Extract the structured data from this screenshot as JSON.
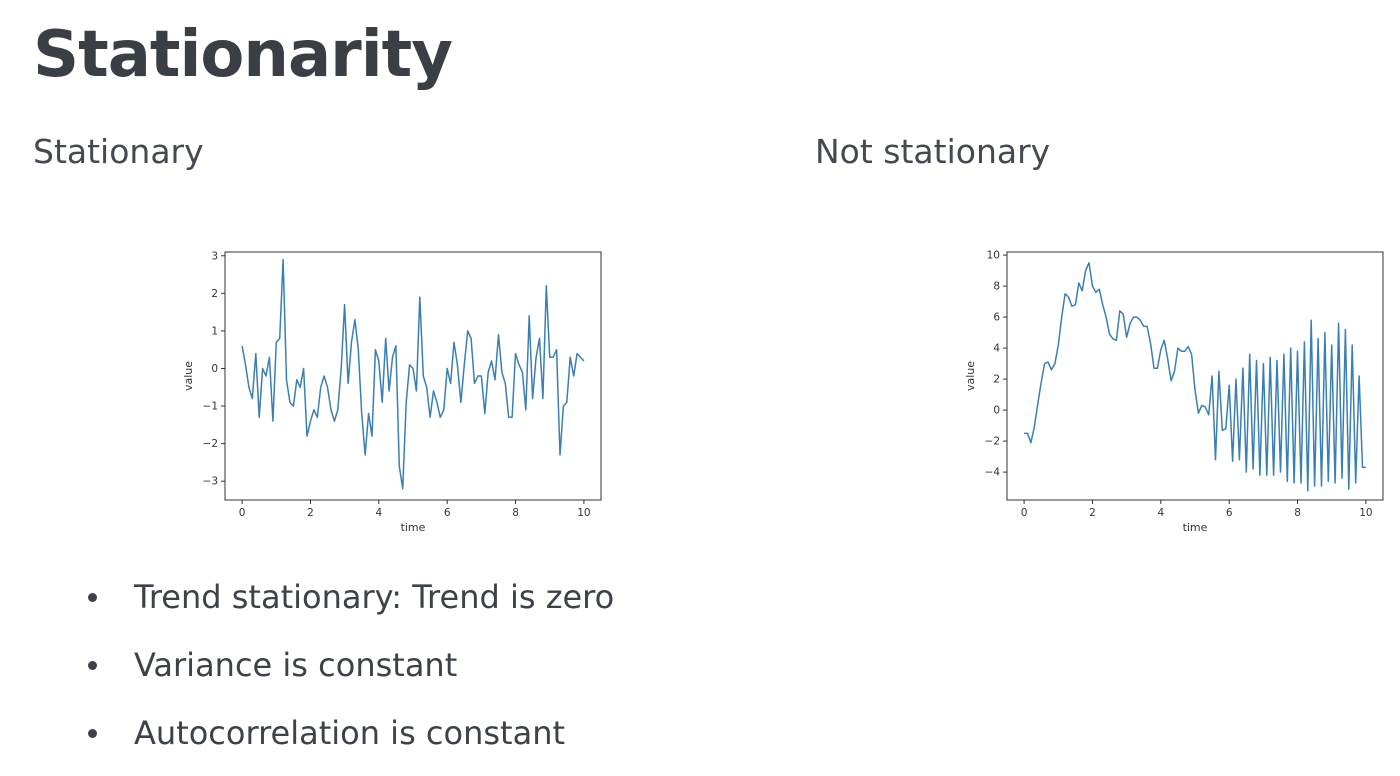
{
  "slide": {
    "title": "Stationarity",
    "left_heading": "Stationary",
    "right_heading": "Not stationary",
    "bullets": [
      "Trend stationary: Trend is zero",
      "Variance is constant",
      "Autocorrelation is constant"
    ]
  },
  "colors": {
    "line": "#3a7fb3",
    "axis": "#333333",
    "text": "#3d424a"
  },
  "chart_data": [
    {
      "type": "line",
      "title": "",
      "xlabel": "time",
      "ylabel": "value",
      "xlim": [
        -0.5,
        10.5
      ],
      "ylim": [
        -3.5,
        3.1
      ],
      "xticks": [
        0,
        2,
        4,
        6,
        8,
        10
      ],
      "yticks": [
        -3,
        -2,
        -1,
        0,
        1,
        2,
        3
      ],
      "grid": false,
      "series": [
        {
          "x": [
            0,
            0.1,
            0.2,
            0.3,
            0.4,
            0.5,
            0.6,
            0.7,
            0.8,
            0.9,
            1.0,
            1.1,
            1.2,
            1.3,
            1.4,
            1.5,
            1.6,
            1.7,
            1.8,
            1.9,
            2.0,
            2.1,
            2.2,
            2.3,
            2.4,
            2.5,
            2.6,
            2.7,
            2.8,
            2.9,
            3.0,
            3.1,
            3.2,
            3.3,
            3.4,
            3.5,
            3.6,
            3.7,
            3.8,
            3.9,
            4.0,
            4.1,
            4.2,
            4.3,
            4.4,
            4.5,
            4.6,
            4.7,
            4.8,
            4.9,
            5.0,
            5.1,
            5.2,
            5.3,
            5.4,
            5.5,
            5.6,
            5.7,
            5.8,
            5.9,
            6.0,
            6.1,
            6.2,
            6.3,
            6.4,
            6.5,
            6.6,
            6.7,
            6.8,
            6.9,
            7.0,
            7.1,
            7.2,
            7.3,
            7.4,
            7.5,
            7.6,
            7.7,
            7.8,
            7.9,
            8.0,
            8.1,
            8.2,
            8.3,
            8.4,
            8.5,
            8.6,
            8.7,
            8.8,
            8.9,
            9.0,
            9.1,
            9.2,
            9.3,
            9.4,
            9.5,
            9.6,
            9.7,
            9.8,
            9.9,
            10.0
          ],
          "y": [
            0.6,
            0.1,
            -0.5,
            -0.8,
            0.4,
            -1.3,
            0.0,
            -0.2,
            0.3,
            -1.4,
            0.7,
            0.8,
            2.9,
            -0.3,
            -0.9,
            -1.0,
            -0.3,
            -0.5,
            0.0,
            -1.8,
            -1.4,
            -1.1,
            -1.3,
            -0.5,
            -0.2,
            -0.5,
            -1.1,
            -1.4,
            -1.1,
            0.0,
            1.7,
            -0.4,
            0.7,
            1.3,
            0.5,
            -1.2,
            -2.3,
            -1.2,
            -1.8,
            0.5,
            0.2,
            -0.9,
            0.8,
            -0.6,
            0.3,
            0.6,
            -2.6,
            -3.2,
            -0.9,
            0.1,
            0.0,
            -0.6,
            1.9,
            -0.2,
            -0.5,
            -1.3,
            -0.6,
            -0.9,
            -1.3,
            -1.1,
            0.0,
            -0.4,
            0.7,
            0.1,
            -0.9,
            0.1,
            1.0,
            0.8,
            -0.4,
            -0.2,
            -0.2,
            -1.2,
            -0.1,
            0.2,
            -0.3,
            0.9,
            -0.1,
            -0.4,
            -1.3,
            -1.3,
            0.4,
            0.1,
            -0.1,
            -1.1,
            1.4,
            -0.8,
            0.3,
            0.8,
            -0.8,
            2.2,
            0.3,
            0.3,
            0.5,
            -2.3,
            -1.0,
            -0.9,
            0.3,
            -0.2,
            0.4,
            0.3,
            0.2
          ]
        }
      ]
    },
    {
      "type": "line",
      "title": "",
      "xlabel": "time",
      "ylabel": "value",
      "xlim": [
        -0.5,
        10.5
      ],
      "ylim": [
        -5.8,
        10.2
      ],
      "xticks": [
        0,
        2,
        4,
        6,
        8,
        10
      ],
      "yticks": [
        -4,
        -2,
        0,
        2,
        4,
        6,
        8,
        10
      ],
      "grid": false,
      "series": [
        {
          "x": [
            0,
            0.1,
            0.2,
            0.3,
            0.4,
            0.5,
            0.6,
            0.7,
            0.8,
            0.9,
            1.0,
            1.1,
            1.2,
            1.3,
            1.4,
            1.5,
            1.6,
            1.7,
            1.8,
            1.9,
            2.0,
            2.1,
            2.2,
            2.3,
            2.4,
            2.5,
            2.6,
            2.7,
            2.8,
            2.9,
            3.0,
            3.1,
            3.2,
            3.3,
            3.4,
            3.5,
            3.6,
            3.7,
            3.8,
            3.9,
            4.0,
            4.1,
            4.2,
            4.3,
            4.4,
            4.5,
            4.6,
            4.7,
            4.8,
            4.9,
            5.0,
            5.1,
            5.2,
            5.3,
            5.4,
            5.5,
            5.6,
            5.7,
            5.8,
            5.9,
            6.0,
            6.1,
            6.2,
            6.3,
            6.4,
            6.5,
            6.6,
            6.7,
            6.8,
            6.9,
            7.0,
            7.1,
            7.2,
            7.3,
            7.4,
            7.5,
            7.6,
            7.7,
            7.8,
            7.9,
            8.0,
            8.1,
            8.2,
            8.3,
            8.4,
            8.5,
            8.6,
            8.7,
            8.8,
            8.9,
            9.0,
            9.1,
            9.2,
            9.3,
            9.4,
            9.5,
            9.6,
            9.7,
            9.8,
            9.9,
            10.0
          ],
          "y": [
            -1.5,
            -1.5,
            -2.1,
            -1.1,
            0.4,
            1.8,
            3.0,
            3.1,
            2.6,
            3.0,
            4.2,
            6.0,
            7.5,
            7.3,
            6.7,
            6.8,
            8.2,
            7.7,
            9.0,
            9.5,
            8.0,
            7.6,
            7.8,
            6.8,
            6.0,
            4.9,
            4.6,
            4.5,
            6.4,
            6.2,
            4.7,
            5.6,
            6.0,
            6.0,
            5.8,
            5.4,
            5.4,
            4.3,
            2.7,
            2.7,
            3.9,
            4.5,
            3.3,
            1.9,
            2.5,
            4.0,
            3.8,
            3.8,
            4.1,
            3.6,
            1.3,
            -0.2,
            0.3,
            0.2,
            -0.3,
            2.2,
            -3.2,
            2.5,
            -1.3,
            -1.2,
            1.6,
            -3.3,
            2.0,
            -3.2,
            2.7,
            -4.0,
            3.6,
            -3.8,
            3.2,
            -4.2,
            3.0,
            -4.2,
            3.4,
            -4.2,
            3.2,
            -4.0,
            3.6,
            -4.6,
            4.0,
            -4.7,
            3.8,
            -4.7,
            4.4,
            -5.2,
            5.8,
            -4.9,
            4.6,
            -4.9,
            5.0,
            -4.6,
            4.2,
            -4.7,
            5.6,
            -4.4,
            5.2,
            -5.1,
            4.2,
            -4.7,
            2.2,
            -3.7,
            -3.7
          ]
        }
      ]
    }
  ]
}
